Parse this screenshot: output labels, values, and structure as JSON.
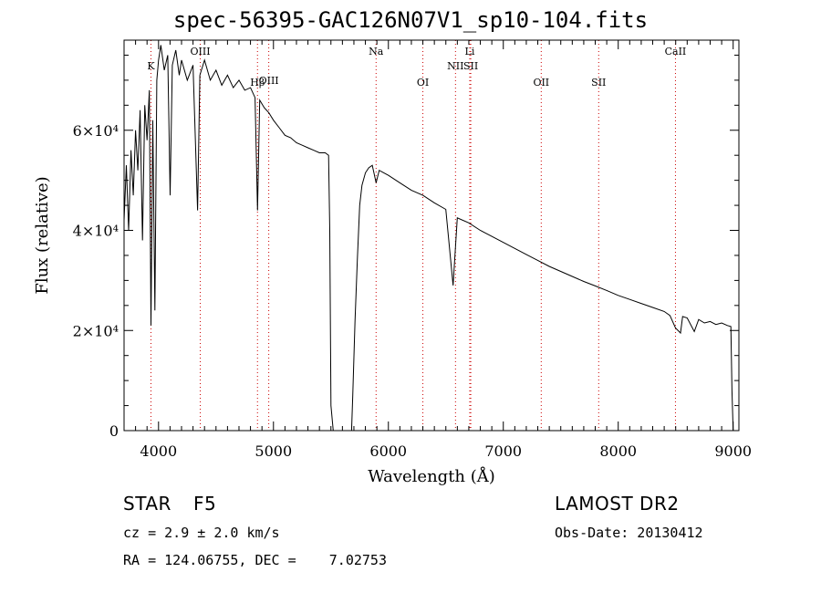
{
  "chart_data": {
    "type": "line",
    "title": "spec-56395-GAC126N07V1_sp10-104.fits",
    "xlabel": "Wavelength (Å)",
    "ylabel": "Flux (relative)",
    "xlim": [
      3700,
      9050
    ],
    "ylim": [
      0,
      78000
    ],
    "x_ticks": [
      4000,
      5000,
      6000,
      7000,
      8000,
      9000
    ],
    "y_ticks": [
      {
        "value": 0,
        "label": "0"
      },
      {
        "value": 20000,
        "label": "2×10⁴"
      },
      {
        "value": 40000,
        "label": "4×10⁴"
      },
      {
        "value": 60000,
        "label": "6×10⁴"
      }
    ],
    "lines": [
      {
        "name": "K",
        "wavelength": 3934,
        "tier": 1
      },
      {
        "name": "OIII",
        "wavelength": 4363,
        "tier": 0
      },
      {
        "name": "Hβ",
        "wavelength": 4861,
        "tier": 3
      },
      {
        "name": "OIII",
        "wavelength": 4959,
        "tier": 2
      },
      {
        "name": "Na",
        "wavelength": 5893,
        "tier": 0
      },
      {
        "name": "OI",
        "wavelength": 6300,
        "tier": 3
      },
      {
        "name": "Li",
        "wavelength": 6708,
        "tier": 0
      },
      {
        "name": "NII",
        "wavelength": 6584,
        "tier": 1
      },
      {
        "name": "SII",
        "wavelength": 6717,
        "tier": 1
      },
      {
        "name": "OII",
        "wavelength": 7330,
        "tier": 3
      },
      {
        "name": "SII",
        "wavelength": 7830,
        "tier": 3
      },
      {
        "name": "CaII",
        "wavelength": 8498,
        "tier": 0
      }
    ],
    "series": [
      {
        "points": [
          [
            3700,
            42000
          ],
          [
            3720,
            53000
          ],
          [
            3740,
            40000
          ],
          [
            3760,
            56000
          ],
          [
            3780,
            47000
          ],
          [
            3800,
            60000
          ],
          [
            3820,
            52000
          ],
          [
            3840,
            64000
          ],
          [
            3860,
            38000
          ],
          [
            3880,
            65000
          ],
          [
            3900,
            58000
          ],
          [
            3920,
            68000
          ],
          [
            3934,
            21000
          ],
          [
            3950,
            62000
          ],
          [
            3968,
            24000
          ],
          [
            3985,
            70000
          ],
          [
            4000,
            74000
          ],
          [
            4020,
            77000
          ],
          [
            4050,
            72000
          ],
          [
            4080,
            75000
          ],
          [
            4101,
            47000
          ],
          [
            4120,
            73000
          ],
          [
            4150,
            76000
          ],
          [
            4180,
            71000
          ],
          [
            4200,
            74000
          ],
          [
            4250,
            70000
          ],
          [
            4300,
            73000
          ],
          [
            4340,
            44000
          ],
          [
            4360,
            71000
          ],
          [
            4400,
            74000
          ],
          [
            4450,
            70000
          ],
          [
            4500,
            72000
          ],
          [
            4550,
            69000
          ],
          [
            4600,
            71000
          ],
          [
            4650,
            68500
          ],
          [
            4700,
            70000
          ],
          [
            4750,
            68000
          ],
          [
            4800,
            68500
          ],
          [
            4840,
            66500
          ],
          [
            4861,
            44000
          ],
          [
            4880,
            66000
          ],
          [
            4920,
            64500
          ],
          [
            4960,
            63500
          ],
          [
            5000,
            62000
          ],
          [
            5050,
            60500
          ],
          [
            5100,
            59000
          ],
          [
            5150,
            58500
          ],
          [
            5200,
            57500
          ],
          [
            5250,
            57000
          ],
          [
            5300,
            56500
          ],
          [
            5350,
            56000
          ],
          [
            5400,
            55500
          ],
          [
            5450,
            55500
          ],
          [
            5480,
            55000
          ],
          [
            5490,
            40000
          ],
          [
            5500,
            5000
          ],
          [
            5520,
            0
          ],
          [
            5680,
            0
          ],
          [
            5690,
            7000
          ],
          [
            5710,
            22000
          ],
          [
            5730,
            34000
          ],
          [
            5750,
            45000
          ],
          [
            5770,
            49000
          ],
          [
            5800,
            51500
          ],
          [
            5830,
            52500
          ],
          [
            5860,
            53000
          ],
          [
            5893,
            49500
          ],
          [
            5920,
            52000
          ],
          [
            5960,
            51500
          ],
          [
            6000,
            51000
          ],
          [
            6100,
            49500
          ],
          [
            6200,
            48000
          ],
          [
            6300,
            47000
          ],
          [
            6400,
            45500
          ],
          [
            6500,
            44200
          ],
          [
            6563,
            29000
          ],
          [
            6600,
            42500
          ],
          [
            6700,
            41500
          ],
          [
            6800,
            40000
          ],
          [
            6900,
            38800
          ],
          [
            7000,
            37600
          ],
          [
            7100,
            36400
          ],
          [
            7200,
            35200
          ],
          [
            7300,
            34000
          ],
          [
            7400,
            32800
          ],
          [
            7500,
            31800
          ],
          [
            7600,
            30800
          ],
          [
            7700,
            29800
          ],
          [
            7800,
            28900
          ],
          [
            7900,
            28000
          ],
          [
            8000,
            27000
          ],
          [
            8100,
            26200
          ],
          [
            8200,
            25400
          ],
          [
            8300,
            24600
          ],
          [
            8400,
            23800
          ],
          [
            8450,
            23000
          ],
          [
            8498,
            20500
          ],
          [
            8542,
            19500
          ],
          [
            8560,
            22800
          ],
          [
            8600,
            22500
          ],
          [
            8662,
            19800
          ],
          [
            8700,
            22200
          ],
          [
            8750,
            21500
          ],
          [
            8800,
            21800
          ],
          [
            8850,
            21200
          ],
          [
            8900,
            21500
          ],
          [
            8950,
            21000
          ],
          [
            8980,
            20800
          ],
          [
            8990,
            8000
          ],
          [
            9000,
            0
          ]
        ]
      }
    ]
  },
  "info": {
    "object_class": "STAR",
    "subclass": "F5",
    "redshift": "cz = 2.9 ± 2.0 km/s",
    "coords": "RA = 124.06755, DEC =    7.02753",
    "survey": "LAMOST DR2",
    "obs_date": "Obs-Date: 20130412"
  }
}
